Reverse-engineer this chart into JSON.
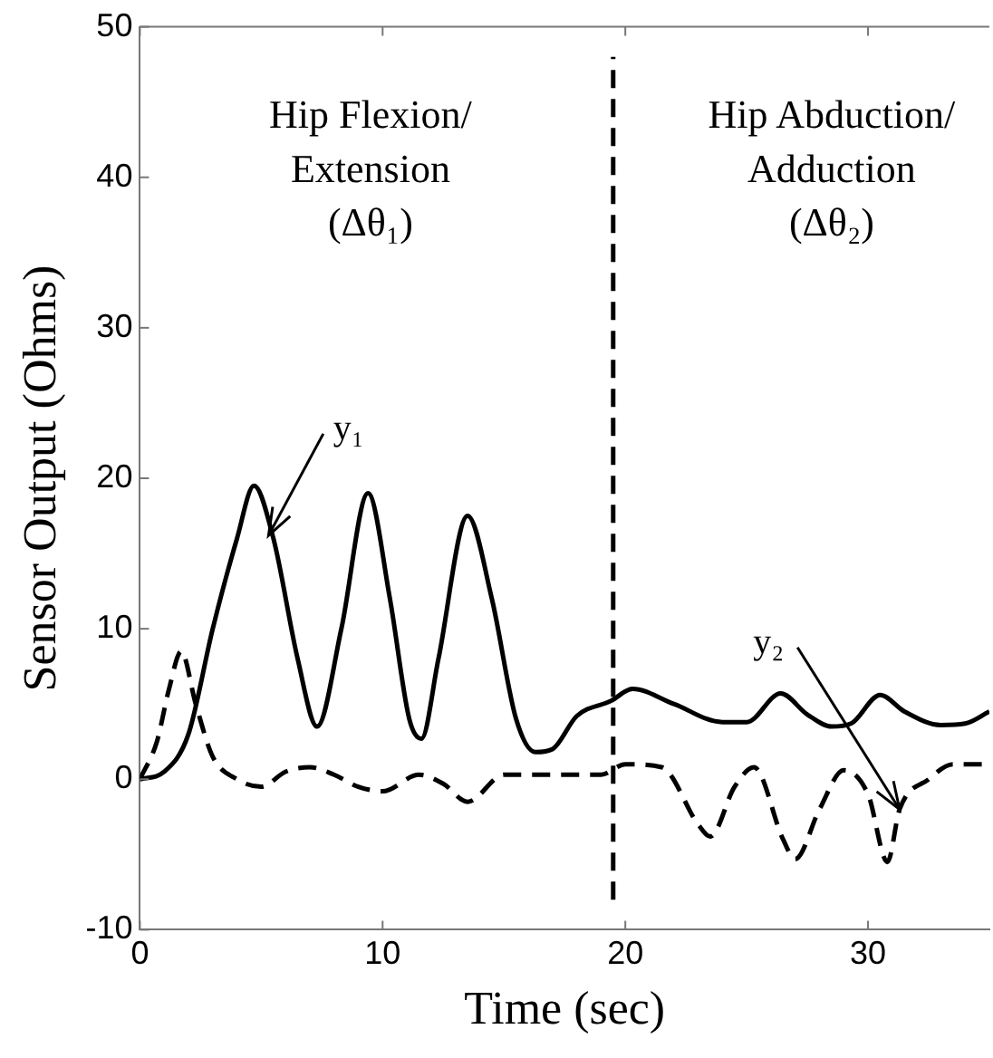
{
  "chart_data": {
    "type": "line",
    "xlabel": "Time (sec)",
    "ylabel": "Sensor Output (Ohms)",
    "xlim": [
      0,
      35
    ],
    "xticks": [
      0,
      10,
      20,
      30
    ],
    "ylim": [
      -10,
      50
    ],
    "yticks": [
      -10,
      0,
      10,
      20,
      30,
      40,
      50
    ],
    "grid": false,
    "legend": false,
    "marker": "none",
    "series": [
      {
        "color": "#000000",
        "line_style": "solid",
        "x": [
          0,
          1,
          2,
          3,
          4,
          4.7,
          5.5,
          6.5,
          7.3,
          8.3,
          9.4,
          10.3,
          11.1,
          11.6,
          12.3,
          13.5,
          14.5,
          15.5,
          16.3,
          17,
          18,
          19.4,
          20.3,
          22,
          24,
          25,
          26.4,
          27.5,
          28.5,
          29.3,
          30.5,
          31.5,
          33,
          34,
          35
        ],
        "values": [
          0,
          0.5,
          3,
          10,
          16,
          19.5,
          16,
          8,
          3.5,
          10,
          19,
          12,
          4,
          2.7,
          8,
          17.5,
          12,
          4,
          1.8,
          2,
          4.2,
          5.2,
          6,
          5,
          3.8,
          3.8,
          5.7,
          4.3,
          3.5,
          3.7,
          5.6,
          4.5,
          3.6,
          3.7,
          4.5
        ]
      },
      {
        "color": "#000000",
        "line_style": "dashed",
        "x": [
          0,
          0.7,
          1.2,
          1.7,
          2.3,
          3,
          4,
          5,
          6,
          7,
          8,
          9,
          10,
          11.5,
          12.5,
          13.5,
          15,
          17,
          19,
          20,
          21.5,
          23,
          23.5,
          24.5,
          25.3,
          26.5,
          27,
          28,
          29,
          30,
          30.8,
          31.3,
          32.5,
          33.5,
          35
        ],
        "values": [
          0,
          2.5,
          6,
          8.5,
          5,
          1.5,
          0,
          -0.5,
          0.5,
          0.8,
          0.3,
          -0.5,
          -0.8,
          0.3,
          -0.3,
          -1.5,
          0.3,
          0.3,
          0.3,
          1,
          0.8,
          -3,
          -3.8,
          -0.5,
          0.8,
          -4,
          -5.3,
          -2,
          0.6,
          -1,
          -5.5,
          -2,
          0,
          1,
          1
        ]
      }
    ],
    "ref_lines": [
      {
        "axis": "x",
        "value": 19.5,
        "line_style": "dashed",
        "color": "#000000"
      }
    ],
    "annotations": [
      "Hip Flexion/\nExtension\n(Δθ₁)",
      "Hip Abduction/\nAdduction\n(Δθ₂)",
      {
        "text": "y₁",
        "x": 5.3,
        "y": 16.2
      },
      {
        "text": "y₂",
        "x": 31.3,
        "y": -2
      }
    ]
  }
}
